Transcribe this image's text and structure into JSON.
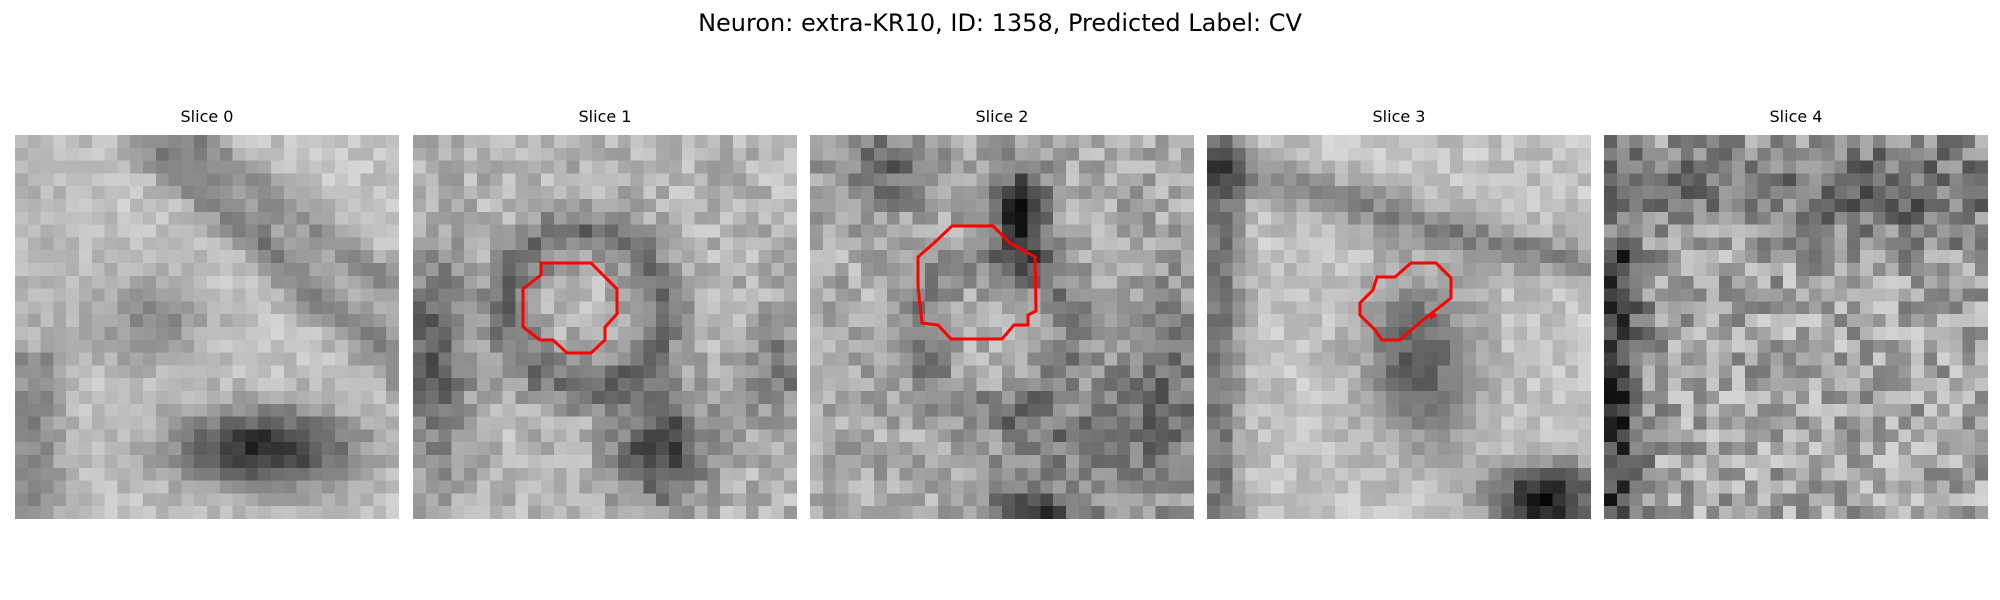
{
  "figure": {
    "title": "Neuron: extra-KR10, ID: 1358, Predicted Label: CV"
  },
  "panels": [
    {
      "title": "Slice 0",
      "has_contour": false,
      "texture": "diagonal-membranes-dark-blob-lower"
    },
    {
      "title": "Slice 1",
      "has_contour": true,
      "texture": "ring-with-dark-corners"
    },
    {
      "title": "Slice 2",
      "has_contour": true,
      "texture": "ring-dark-top"
    },
    {
      "title": "Slice 3",
      "has_contour": true,
      "texture": "dark-blob-center-dark-lower-right"
    },
    {
      "title": "Slice 4",
      "has_contour": false,
      "texture": "noisy-dark-left"
    }
  ],
  "colors": {
    "contour": "#ff0000",
    "background": "#ffffff"
  }
}
